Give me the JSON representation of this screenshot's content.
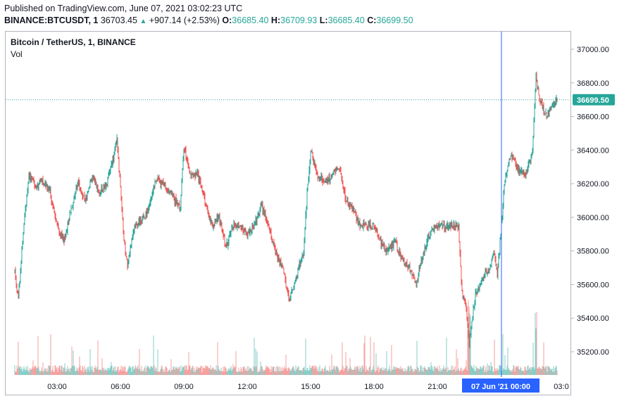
{
  "header": {
    "published": "Published on TradingView.com, June 07, 2021 03:02:23 UTC",
    "symbol": "BINANCE:BTCUSDT, 1",
    "last": "36703.45",
    "change": "+907.14 (+2.53%)",
    "o_label": "O:",
    "o": "36685.40",
    "h_label": "H:",
    "h": "36709.93",
    "l_label": "L:",
    "l": "36685.40",
    "c_label": "C:",
    "c": "36699.50"
  },
  "legend": {
    "title": "Bitcoin / TetherUS, 1, BINANCE",
    "vol": "Vol"
  },
  "colors": {
    "up": "#26a69a",
    "down": "#ef5350",
    "crosshair": "#2962ff",
    "axis_text": "#131722",
    "price_line": "#26a69a"
  },
  "chart_data": {
    "type": "candlestick",
    "title": "Bitcoin / TetherUS, 1, BINANCE",
    "ylim": [
      35050,
      37100
    ],
    "y_ticks": [
      "37000.00",
      "36800.00",
      "36600.00",
      "36400.00",
      "36200.00",
      "36000.00",
      "35800.00",
      "35600.00",
      "35400.00",
      "35200.00"
    ],
    "x_ticks": [
      "03:00",
      "06:00",
      "09:00",
      "12:00",
      "15:00",
      "18:00",
      "21:00",
      "03:0"
    ],
    "current_price": "36699.50",
    "crosshair_label": "07 Jun '21   00:00",
    "price_path": [
      [
        "01:00",
        35680
      ],
      [
        "01:10",
        35520
      ],
      [
        "01:20",
        35800
      ],
      [
        "01:30",
        36050
      ],
      [
        "01:40",
        36250
      ],
      [
        "02:00",
        36180
      ],
      [
        "02:20",
        36220
      ],
      [
        "02:40",
        36150
      ],
      [
        "03:00",
        35950
      ],
      [
        "03:20",
        35850
      ],
      [
        "03:40",
        36050
      ],
      [
        "04:00",
        36200
      ],
      [
        "04:20",
        36100
      ],
      [
        "04:40",
        36250
      ],
      [
        "05:00",
        36150
      ],
      [
        "05:20",
        36200
      ],
      [
        "05:40",
        36350
      ],
      [
        "05:50",
        36480
      ],
      [
        "06:10",
        35850
      ],
      [
        "06:20",
        35720
      ],
      [
        "06:40",
        35950
      ],
      [
        "07:00",
        35980
      ],
      [
        "07:20",
        36050
      ],
      [
        "07:40",
        36220
      ],
      [
        "08:00",
        36200
      ],
      [
        "08:30",
        36120
      ],
      [
        "08:50",
        36050
      ],
      [
        "09:00",
        36420
      ],
      [
        "09:20",
        36250
      ],
      [
        "09:40",
        36250
      ],
      [
        "10:00",
        36100
      ],
      [
        "10:20",
        35950
      ],
      [
        "10:40",
        36000
      ],
      [
        "11:00",
        35820
      ],
      [
        "11:20",
        35950
      ],
      [
        "11:40",
        35950
      ],
      [
        "12:00",
        35900
      ],
      [
        "12:20",
        35950
      ],
      [
        "12:40",
        36080
      ],
      [
        "13:00",
        35950
      ],
      [
        "13:20",
        35800
      ],
      [
        "13:40",
        35700
      ],
      [
        "14:00",
        35500
      ],
      [
        "14:20",
        35650
      ],
      [
        "14:40",
        35800
      ],
      [
        "14:50",
        36150
      ],
      [
        "15:00",
        36400
      ],
      [
        "15:20",
        36250
      ],
      [
        "15:40",
        36200
      ],
      [
        "16:00",
        36250
      ],
      [
        "16:20",
        36300
      ],
      [
        "16:40",
        36100
      ],
      [
        "17:00",
        36050
      ],
      [
        "17:20",
        35950
      ],
      [
        "17:40",
        35950
      ],
      [
        "18:00",
        35950
      ],
      [
        "18:20",
        35850
      ],
      [
        "18:40",
        35800
      ],
      [
        "19:00",
        35850
      ],
      [
        "19:20",
        35750
      ],
      [
        "19:40",
        35700
      ],
      [
        "20:00",
        35600
      ],
      [
        "20:20",
        35800
      ],
      [
        "20:40",
        35900
      ],
      [
        "21:00",
        35950
      ],
      [
        "21:20",
        35950
      ],
      [
        "21:40",
        35950
      ],
      [
        "22:00",
        35950
      ],
      [
        "22:10",
        35550
      ],
      [
        "22:20",
        35480
      ],
      [
        "22:30",
        35250
      ],
      [
        "22:40",
        35420
      ],
      [
        "22:50",
        35560
      ],
      [
        "23:10",
        35650
      ],
      [
        "23:30",
        35700
      ],
      [
        "23:40",
        35800
      ],
      [
        "23:50",
        35650
      ],
      [
        "00:00",
        35900
      ],
      [
        "00:10",
        36200
      ],
      [
        "00:30",
        36380
      ],
      [
        "00:50",
        36280
      ],
      [
        "01:10",
        36250
      ],
      [
        "01:30",
        36400
      ],
      [
        "01:40",
        36850
      ],
      [
        "01:50",
        36700
      ],
      [
        "02:00",
        36650
      ],
      [
        "02:10",
        36600
      ],
      [
        "02:30",
        36680
      ],
      [
        "02:40",
        36700
      ]
    ]
  }
}
